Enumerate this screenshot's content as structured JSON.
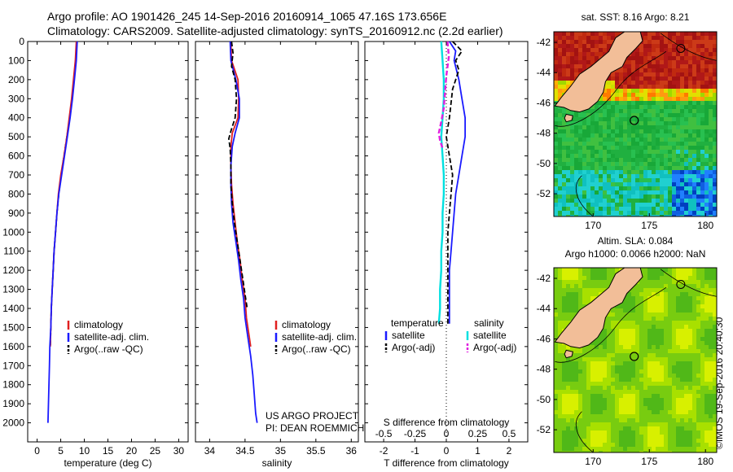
{
  "header": {
    "line1": "Argo profile: AO 1901426_245 14-Sep-2016 20160914_1065 47.16S 173.656E",
    "line2": "Climatology: CARS2009. Satellite-adjusted climatology: synTS_20160912.nc (2.2d earlier)"
  },
  "credit": {
    "line1": "US ARGO PROJECT",
    "line2": "PI: DEAN ROEMMICH"
  },
  "side_stamp": "©IMOS 19-Sep-2016 20:40:30",
  "colors": {
    "climatology": "#e02020",
    "satellite": "#1a1aff",
    "argo": "#000000",
    "sal_satellite": "#00e0e0",
    "sal_argo": "#e020e0"
  },
  "chart_data": [
    {
      "type": "line",
      "xlabel": "temperature (deg C)",
      "ylabel": "",
      "xlim": [
        -2,
        32
      ],
      "ylim": [
        2100,
        0
      ],
      "xticks": [
        "0",
        "5",
        "10",
        "15",
        "20",
        "25",
        "30"
      ],
      "yticks": [
        "0",
        "100",
        "200",
        "300",
        "400",
        "500",
        "600",
        "700",
        "800",
        "900",
        "1000",
        "1100",
        "1200",
        "1300",
        "1400",
        "1500",
        "1600",
        "1700",
        "1800",
        "1900",
        "2000"
      ],
      "legend": {
        "position": "middle-center",
        "entries": [
          "climatology",
          "satellite-adj. clim.",
          "Argo(..raw -QC)"
        ]
      },
      "series": [
        {
          "name": "climatology",
          "points": [
            [
              8.3,
              0
            ],
            [
              8.1,
              100
            ],
            [
              7.7,
              200
            ],
            [
              7.3,
              300
            ],
            [
              6.8,
              400
            ],
            [
              6.3,
              500
            ],
            [
              5.7,
              600
            ],
            [
              5.0,
              700
            ],
            [
              4.5,
              800
            ],
            [
              4.2,
              900
            ],
            [
              3.9,
              1000
            ],
            [
              3.6,
              1100
            ],
            [
              3.4,
              1200
            ],
            [
              3.2,
              1300
            ],
            [
              3.0,
              1400
            ],
            [
              2.9,
              1500
            ],
            [
              2.8,
              1600
            ]
          ]
        },
        {
          "name": "satellite-adj. clim.",
          "points": [
            [
              8.5,
              0
            ],
            [
              8.3,
              100
            ],
            [
              7.9,
              200
            ],
            [
              7.5,
              300
            ],
            [
              7.0,
              400
            ],
            [
              6.4,
              500
            ],
            [
              5.8,
              600
            ],
            [
              5.2,
              700
            ],
            [
              4.6,
              800
            ],
            [
              4.2,
              900
            ],
            [
              3.9,
              1000
            ],
            [
              3.6,
              1100
            ],
            [
              3.4,
              1200
            ],
            [
              3.2,
              1300
            ],
            [
              3.0,
              1400
            ],
            [
              2.9,
              1500
            ],
            [
              2.7,
              1600
            ],
            [
              2.6,
              1700
            ],
            [
              2.5,
              1800
            ],
            [
              2.4,
              1900
            ],
            [
              2.3,
              2000
            ]
          ]
        },
        {
          "name": "Argo(..raw -QC)",
          "points": [
            [
              8.4,
              0
            ],
            [
              8.2,
              100
            ],
            [
              7.8,
              200
            ],
            [
              7.4,
              300
            ],
            [
              6.9,
              400
            ],
            [
              6.3,
              500
            ],
            [
              5.7,
              600
            ],
            [
              5.1,
              700
            ],
            [
              4.6,
              800
            ],
            [
              4.2,
              900
            ],
            [
              3.9,
              1000
            ],
            [
              3.6,
              1100
            ],
            [
              3.4,
              1200
            ],
            [
              3.2,
              1300
            ],
            [
              3.0,
              1400
            ],
            [
              2.9,
              1500
            ],
            [
              2.8,
              1600
            ]
          ]
        }
      ]
    },
    {
      "type": "line",
      "xlabel": "salinity",
      "xlim": [
        33.8,
        36.1
      ],
      "ylim": [
        2100,
        0
      ],
      "xticks": [
        "34",
        "34.5",
        "35",
        "35.5",
        "36"
      ],
      "legend": {
        "position": "middle-right",
        "entries": [
          "climatology",
          "satellite-adj. clim.",
          "Argo(..raw -QC)"
        ]
      },
      "series": [
        {
          "name": "climatology",
          "points": [
            [
              34.3,
              0
            ],
            [
              34.31,
              100
            ],
            [
              34.4,
              200
            ],
            [
              34.41,
              300
            ],
            [
              34.4,
              400
            ],
            [
              34.32,
              480
            ],
            [
              34.3,
              550
            ],
            [
              34.3,
              650
            ],
            [
              34.31,
              750
            ],
            [
              34.33,
              850
            ],
            [
              34.36,
              950
            ],
            [
              34.39,
              1050
            ],
            [
              34.43,
              1150
            ],
            [
              34.46,
              1250
            ],
            [
              34.5,
              1350
            ],
            [
              34.52,
              1450
            ],
            [
              34.56,
              1550
            ],
            [
              34.58,
              1600
            ]
          ]
        },
        {
          "name": "satellite-adj. clim.",
          "points": [
            [
              34.29,
              0
            ],
            [
              34.3,
              100
            ],
            [
              34.37,
              200
            ],
            [
              34.42,
              300
            ],
            [
              34.42,
              400
            ],
            [
              34.36,
              480
            ],
            [
              34.32,
              550
            ],
            [
              34.3,
              650
            ],
            [
              34.3,
              750
            ],
            [
              34.31,
              850
            ],
            [
              34.33,
              950
            ],
            [
              34.37,
              1050
            ],
            [
              34.41,
              1150
            ],
            [
              34.44,
              1250
            ],
            [
              34.48,
              1350
            ],
            [
              34.5,
              1450
            ],
            [
              34.54,
              1550
            ],
            [
              34.58,
              1650
            ],
            [
              34.61,
              1750
            ],
            [
              34.63,
              1850
            ],
            [
              34.65,
              1950
            ],
            [
              34.67,
              2000
            ]
          ]
        },
        {
          "name": "Argo(..raw -QC)",
          "points": [
            [
              34.31,
              0
            ],
            [
              34.33,
              60
            ],
            [
              34.31,
              130
            ],
            [
              34.36,
              200
            ],
            [
              34.38,
              300
            ],
            [
              34.36,
              400
            ],
            [
              34.3,
              470
            ],
            [
              34.27,
              510
            ],
            [
              34.29,
              560
            ],
            [
              34.3,
              650
            ],
            [
              34.3,
              750
            ],
            [
              34.32,
              850
            ],
            [
              34.35,
              950
            ],
            [
              34.39,
              1050
            ],
            [
              34.43,
              1150
            ],
            [
              34.47,
              1250
            ],
            [
              34.51,
              1350
            ],
            [
              34.53,
              1400
            ]
          ]
        }
      ]
    },
    {
      "type": "line",
      "xlabel": "T difference from climatology",
      "x2label": "S difference from climatology",
      "xlim": [
        -2.6,
        2.6
      ],
      "ylim": [
        2100,
        0
      ],
      "xticks": [
        "-2",
        "-1",
        "0",
        "1",
        "2"
      ],
      "x2ticks": [
        "-0.5",
        "-0.25",
        "0",
        "0.25",
        "0.5"
      ],
      "legend": {
        "position": "lower-left",
        "entries": [
          "temperature",
          "satellite",
          "Argo(-adj)",
          "salinity",
          "satellite",
          "Argo(-adj)"
        ]
      },
      "series": [
        {
          "name": "temperature satellite",
          "points": [
            [
              0.1,
              0
            ],
            [
              0.3,
              50
            ],
            [
              0.25,
              100
            ],
            [
              0.4,
              200
            ],
            [
              0.5,
              300
            ],
            [
              0.6,
              400
            ],
            [
              0.6,
              500
            ],
            [
              0.5,
              600
            ],
            [
              0.4,
              700
            ],
            [
              0.3,
              800
            ],
            [
              0.25,
              900
            ],
            [
              0.2,
              1000
            ],
            [
              0.15,
              1100
            ],
            [
              0.1,
              1200
            ],
            [
              0.1,
              1300
            ],
            [
              0.1,
              1400
            ],
            [
              0.1,
              1480
            ]
          ]
        },
        {
          "name": "temperature Argo(-adj)",
          "points": [
            [
              0.2,
              0
            ],
            [
              0.5,
              50
            ],
            [
              0.3,
              100
            ],
            [
              0.4,
              150
            ],
            [
              0.2,
              250
            ],
            [
              0.1,
              400
            ],
            [
              0.0,
              500
            ],
            [
              0.1,
              600
            ],
            [
              0.2,
              700
            ],
            [
              0.15,
              800
            ],
            [
              0.1,
              900
            ],
            [
              0.05,
              1000
            ],
            [
              0.05,
              1200
            ],
            [
              0.05,
              1400
            ],
            [
              0.05,
              1480
            ]
          ]
        },
        {
          "name": "salinity satellite",
          "points": [
            [
              -0.04,
              0
            ],
            [
              -0.03,
              100
            ],
            [
              -0.02,
              200
            ],
            [
              -0.02,
              300
            ],
            [
              -0.03,
              400
            ],
            [
              -0.04,
              500
            ],
            [
              -0.03,
              600
            ],
            [
              -0.02,
              700
            ],
            [
              -0.02,
              800
            ],
            [
              -0.03,
              900
            ],
            [
              -0.03,
              1000
            ],
            [
              -0.04,
              1100
            ],
            [
              -0.04,
              1200
            ],
            [
              -0.05,
              1300
            ],
            [
              -0.05,
              1400
            ],
            [
              -0.06,
              1480
            ]
          ]
        },
        {
          "name": "salinity Argo(-adj)",
          "points": [
            [
              0.01,
              0
            ],
            [
              0.02,
              80
            ],
            [
              0.0,
              180
            ],
            [
              -0.01,
              260
            ],
            [
              -0.02,
              350
            ],
            [
              -0.04,
              420
            ],
            [
              -0.06,
              480
            ],
            [
              -0.05,
              520
            ],
            [
              -0.03,
              560
            ]
          ]
        }
      ]
    },
    {
      "type": "heatmap",
      "title": "sat. SST: 8.16 Argo: 8.21",
      "xlim": [
        166.5,
        181
      ],
      "ylim": [
        -53.5,
        -41.3
      ],
      "xticks": [
        "170",
        "175",
        "180"
      ],
      "yticks": [
        "-42",
        "-44",
        "-46",
        "-48",
        "-50",
        "-52"
      ],
      "marker": {
        "lon": 173.656,
        "lat": -47.16
      }
    },
    {
      "type": "heatmap",
      "title": "Altim. SLA: 0.084",
      "subtitle": "Argo h1000: 0.0066 h2000: NaN",
      "xlim": [
        166.5,
        181
      ],
      "ylim": [
        -53.5,
        -41.3
      ],
      "xticks": [
        "170",
        "175",
        "180"
      ],
      "yticks": [
        "-42",
        "-44",
        "-46",
        "-48",
        "-50",
        "-52"
      ],
      "marker": {
        "lon": 173.656,
        "lat": -47.16
      }
    }
  ]
}
